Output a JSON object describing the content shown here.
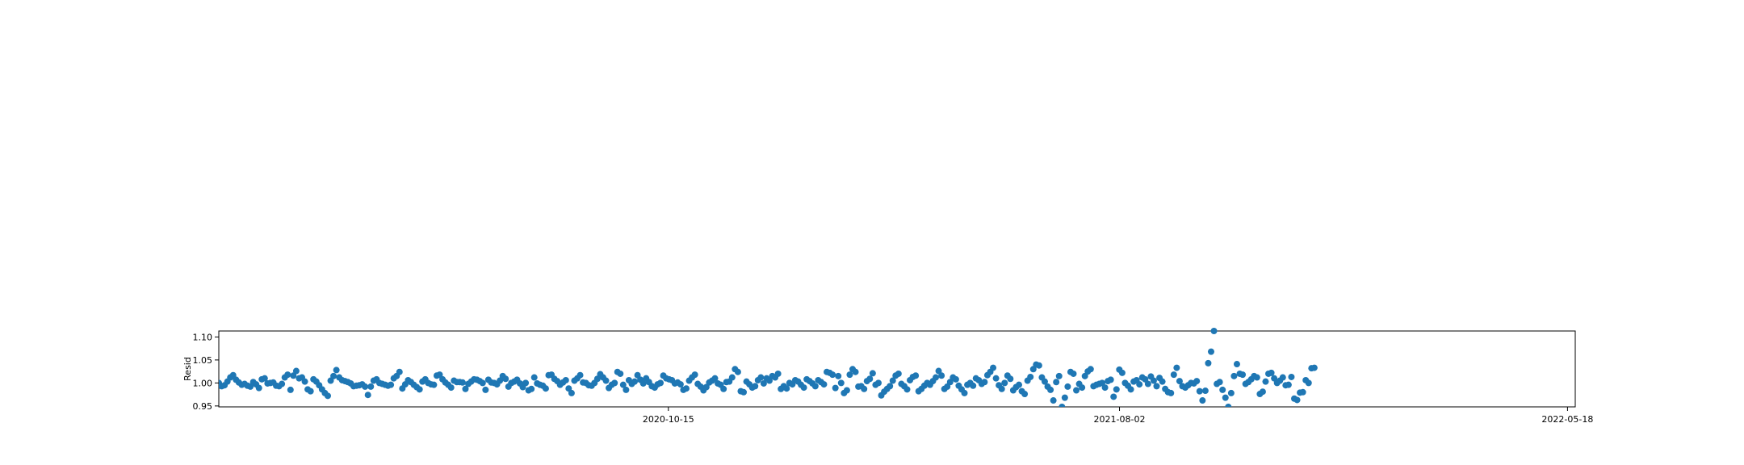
{
  "chart_data": {
    "type": "scatter",
    "title": "",
    "xlabel": "",
    "ylabel": "Resid",
    "x_start": "2019-12-30",
    "x_step_days": 1.85,
    "x_ticks": [
      "2020-10-15",
      "2021-08-02",
      "2022-05-18"
    ],
    "xlim": [
      "2019-12-30",
      "2022-05-23"
    ],
    "y_ticks": [
      "0.95",
      "1.00",
      "1.05",
      "1.10"
    ],
    "ylim": [
      0.948,
      1.113
    ],
    "grid": false,
    "marker_color": "#1f77b4",
    "series": [
      {
        "name": "",
        "values": [
          1.0,
          0.993,
          0.995,
          1.003,
          1.012,
          1.017,
          1.007,
          1.001,
          0.996,
          0.998,
          0.994,
          0.992,
          1.002,
          0.997,
          0.989,
          1.008,
          1.01,
          0.999,
          1.0,
          1.001,
          0.994,
          0.993,
          0.998,
          1.012,
          1.018,
          0.985,
          1.016,
          1.026,
          1.01,
          1.012,
          1.003,
          0.986,
          0.982,
          1.008,
          1.003,
          0.995,
          0.986,
          0.978,
          0.972,
          1.005,
          1.015,
          1.028,
          1.012,
          1.006,
          1.004,
          1.002,
          0.999,
          0.993,
          0.994,
          0.995,
          0.997,
          0.992,
          0.974,
          0.992,
          1.005,
          1.008,
          1.0,
          0.998,
          0.996,
          0.994,
          0.996,
          1.01,
          1.015,
          1.024,
          0.988,
          0.997,
          1.006,
          1.002,
          0.996,
          0.991,
          0.986,
          1.003,
          1.008,
          1.0,
          0.997,
          0.996,
          1.016,
          1.018,
          1.008,
          1.001,
          0.996,
          0.99,
          1.005,
          1.002,
          1.002,
          1.001,
          0.987,
          0.998,
          1.003,
          1.008,
          1.007,
          1.004,
          1.0,
          0.985,
          1.007,
          1.001,
          1.0,
          0.997,
          1.005,
          1.015,
          1.009,
          0.992,
          1.0,
          1.003,
          1.007,
          0.999,
          0.991,
          1.0,
          0.984,
          0.987,
          1.012,
          0.999,
          0.996,
          0.994,
          0.988,
          1.017,
          1.018,
          1.009,
          1.004,
          0.996,
          1.001,
          1.006,
          0.988,
          0.978,
          1.005,
          1.01,
          1.017,
          1.001,
          1.0,
          0.995,
          0.994,
          1.0,
          1.009,
          1.019,
          1.012,
          1.005,
          0.989,
          0.996,
          1.0,
          1.024,
          1.02,
          0.996,
          0.985,
          1.006,
          0.998,
          1.003,
          1.017,
          1.007,
          0.999,
          1.01,
          1.002,
          0.993,
          0.99,
          0.997,
          1.0,
          1.016,
          1.01,
          1.008,
          1.006,
          0.999,
          1.001,
          0.997,
          0.985,
          0.988,
          1.005,
          1.012,
          1.018,
          0.998,
          0.992,
          0.984,
          0.991,
          1.001,
          1.005,
          1.01,
          0.999,
          0.996,
          0.987,
          1.002,
          1.003,
          1.012,
          1.03,
          1.024,
          0.982,
          0.98,
          1.003,
          0.997,
          0.99,
          0.993,
          1.006,
          1.012,
          0.999,
          1.01,
          1.005,
          1.015,
          1.012,
          1.02,
          0.987,
          0.993,
          0.988,
          1.0,
          0.997,
          1.006,
          1.003,
          0.996,
          0.99,
          1.008,
          1.004,
          0.999,
          0.993,
          1.006,
          1.002,
          0.997,
          1.024,
          1.022,
          1.018,
          0.989,
          1.015,
          1.0,
          0.978,
          0.984,
          1.018,
          1.03,
          1.024,
          0.992,
          0.993,
          0.987,
          1.004,
          1.009,
          1.021,
          0.996,
          1.0,
          0.973,
          0.981,
          0.987,
          0.993,
          1.005,
          1.016,
          1.02,
          0.998,
          0.993,
          0.986,
          1.006,
          1.013,
          1.016,
          0.982,
          0.987,
          0.994,
          1.0,
          0.996,
          1.004,
          1.012,
          1.026,
          1.016,
          0.987,
          0.992,
          1.002,
          1.012,
          1.008,
          0.994,
          0.986,
          0.978,
          0.996,
          1.0,
          0.994,
          1.01,
          1.006,
          0.998,
          1.002,
          1.017,
          1.024,
          1.033,
          1.01,
          0.995,
          0.987,
          1.0,
          1.016,
          1.009,
          0.984,
          0.991,
          0.996,
          0.982,
          0.976,
          1.005,
          1.013,
          1.03,
          1.04,
          1.038,
          1.012,
          1.003,
          0.992,
          0.985,
          0.962,
          1.002,
          1.015,
          0.948,
          0.968,
          0.992,
          1.024,
          1.02,
          0.984,
          0.998,
          0.99,
          1.015,
          1.025,
          1.03,
          0.993,
          0.996,
          0.998,
          1.0,
          0.99,
          1.004,
          1.007,
          0.97,
          0.986,
          1.029,
          1.022,
          1.0,
          0.994,
          0.986,
          1.003,
          1.006,
          0.997,
          1.012,
          1.008,
          0.998,
          1.014,
          1.005,
          0.993,
          1.011,
          1.003,
          0.987,
          0.98,
          0.978,
          1.018,
          1.033,
          1.004,
          0.993,
          0.99,
          0.995,
          1.0,
          0.999,
          1.004,
          0.982,
          0.962,
          0.983,
          1.043,
          1.068,
          1.113,
          0.998,
          1.002,
          0.985,
          0.968,
          0.948,
          0.978,
          1.015,
          1.041,
          1.02,
          1.018,
          0.998,
          1.002,
          1.008,
          1.015,
          1.012,
          0.976,
          0.981,
          1.003,
          1.02,
          1.022,
          1.01,
          1.0,
          1.005,
          1.012,
          0.995,
          0.996,
          1.013,
          0.966,
          0.963,
          0.979,
          0.98,
          1.006,
          1.0,
          1.032,
          1.033
        ]
      }
    ]
  }
}
